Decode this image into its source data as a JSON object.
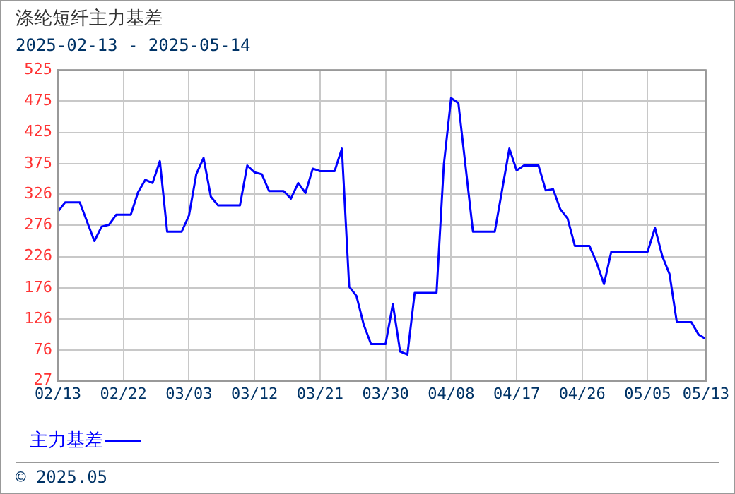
{
  "chart_data": {
    "type": "line",
    "title": "涤纶短纤主力基差",
    "subtitle": "2025-02-13 - 2025-05-14",
    "x": [
      "2025-02-13",
      "2025-02-14",
      "2025-02-16",
      "2025-02-18",
      "2025-02-19",
      "2025-02-20",
      "2025-02-21",
      "2025-02-23",
      "2025-02-24",
      "2025-02-25",
      "2025-02-26",
      "2025-02-27",
      "2025-02-28",
      "2025-03-02",
      "2025-03-03",
      "2025-03-04",
      "2025-03-05",
      "2025-03-06",
      "2025-03-07",
      "2025-03-10",
      "2025-03-11",
      "2025-03-12",
      "2025-03-13",
      "2025-03-14",
      "2025-03-16",
      "2025-03-17",
      "2025-03-18",
      "2025-03-19",
      "2025-03-20",
      "2025-03-21",
      "2025-03-23",
      "2025-03-24",
      "2025-03-25",
      "2025-03-26",
      "2025-03-27",
      "2025-03-28",
      "2025-03-30",
      "2025-03-31",
      "2025-04-01",
      "2025-04-02",
      "2025-04-03",
      "2025-04-06",
      "2025-04-07",
      "2025-04-08",
      "2025-04-09",
      "2025-04-11",
      "2025-04-14",
      "2025-04-16",
      "2025-04-17",
      "2025-04-18",
      "2025-04-20",
      "2025-04-21",
      "2025-04-22",
      "2025-04-23",
      "2025-04-24",
      "2025-04-25",
      "2025-04-27",
      "2025-04-28",
      "2025-04-29",
      "2025-04-30",
      "2025-05-05",
      "2025-05-06",
      "2025-05-07",
      "2025-05-08",
      "2025-05-09",
      "2025-05-11",
      "2025-05-12",
      "2025-05-13"
    ],
    "series": [
      {
        "name": "主力基差",
        "color": "#0000ff",
        "values": [
          298,
          313,
          313,
          251,
          274,
          277,
          293,
          293,
          329,
          349,
          344,
          379,
          266,
          266,
          292,
          358,
          384,
          322,
          308,
          308,
          372,
          361,
          358,
          331,
          331,
          319,
          344,
          328,
          367,
          363,
          363,
          399,
          178,
          163,
          117,
          86,
          86,
          150,
          74,
          69,
          168,
          168,
          373,
          480,
          472,
          266,
          266,
          399,
          364,
          372,
          372,
          332,
          334,
          302,
          287,
          243,
          243,
          216,
          182,
          234,
          234,
          272,
          227,
          198,
          121,
          121,
          101,
          94
        ]
      }
    ],
    "xlim": [
      "2025-02-13",
      "2025-05-13"
    ],
    "xticks": [
      {
        "value": "2025-02-13",
        "label": "02/13"
      },
      {
        "value": "2025-02-22",
        "label": "02/22"
      },
      {
        "value": "2025-03-03",
        "label": "03/03"
      },
      {
        "value": "2025-03-12",
        "label": "03/12"
      },
      {
        "value": "2025-03-21",
        "label": "03/21"
      },
      {
        "value": "2025-03-30",
        "label": "03/30"
      },
      {
        "value": "2025-04-08",
        "label": "04/08"
      },
      {
        "value": "2025-04-17",
        "label": "04/17"
      },
      {
        "value": "2025-04-26",
        "label": "04/26"
      },
      {
        "value": "2025-05-05",
        "label": "05/05"
      },
      {
        "value": "2025-05-13",
        "label": "05/13"
      }
    ],
    "ylim": [
      27,
      525
    ],
    "yticks": [
      27,
      76,
      126,
      176,
      226,
      276,
      326,
      375,
      425,
      475,
      525
    ],
    "grid": true,
    "legend": "bottom left",
    "marker": "none",
    "line_style": "solid",
    "annotations": [
      "© 2025.05"
    ]
  }
}
